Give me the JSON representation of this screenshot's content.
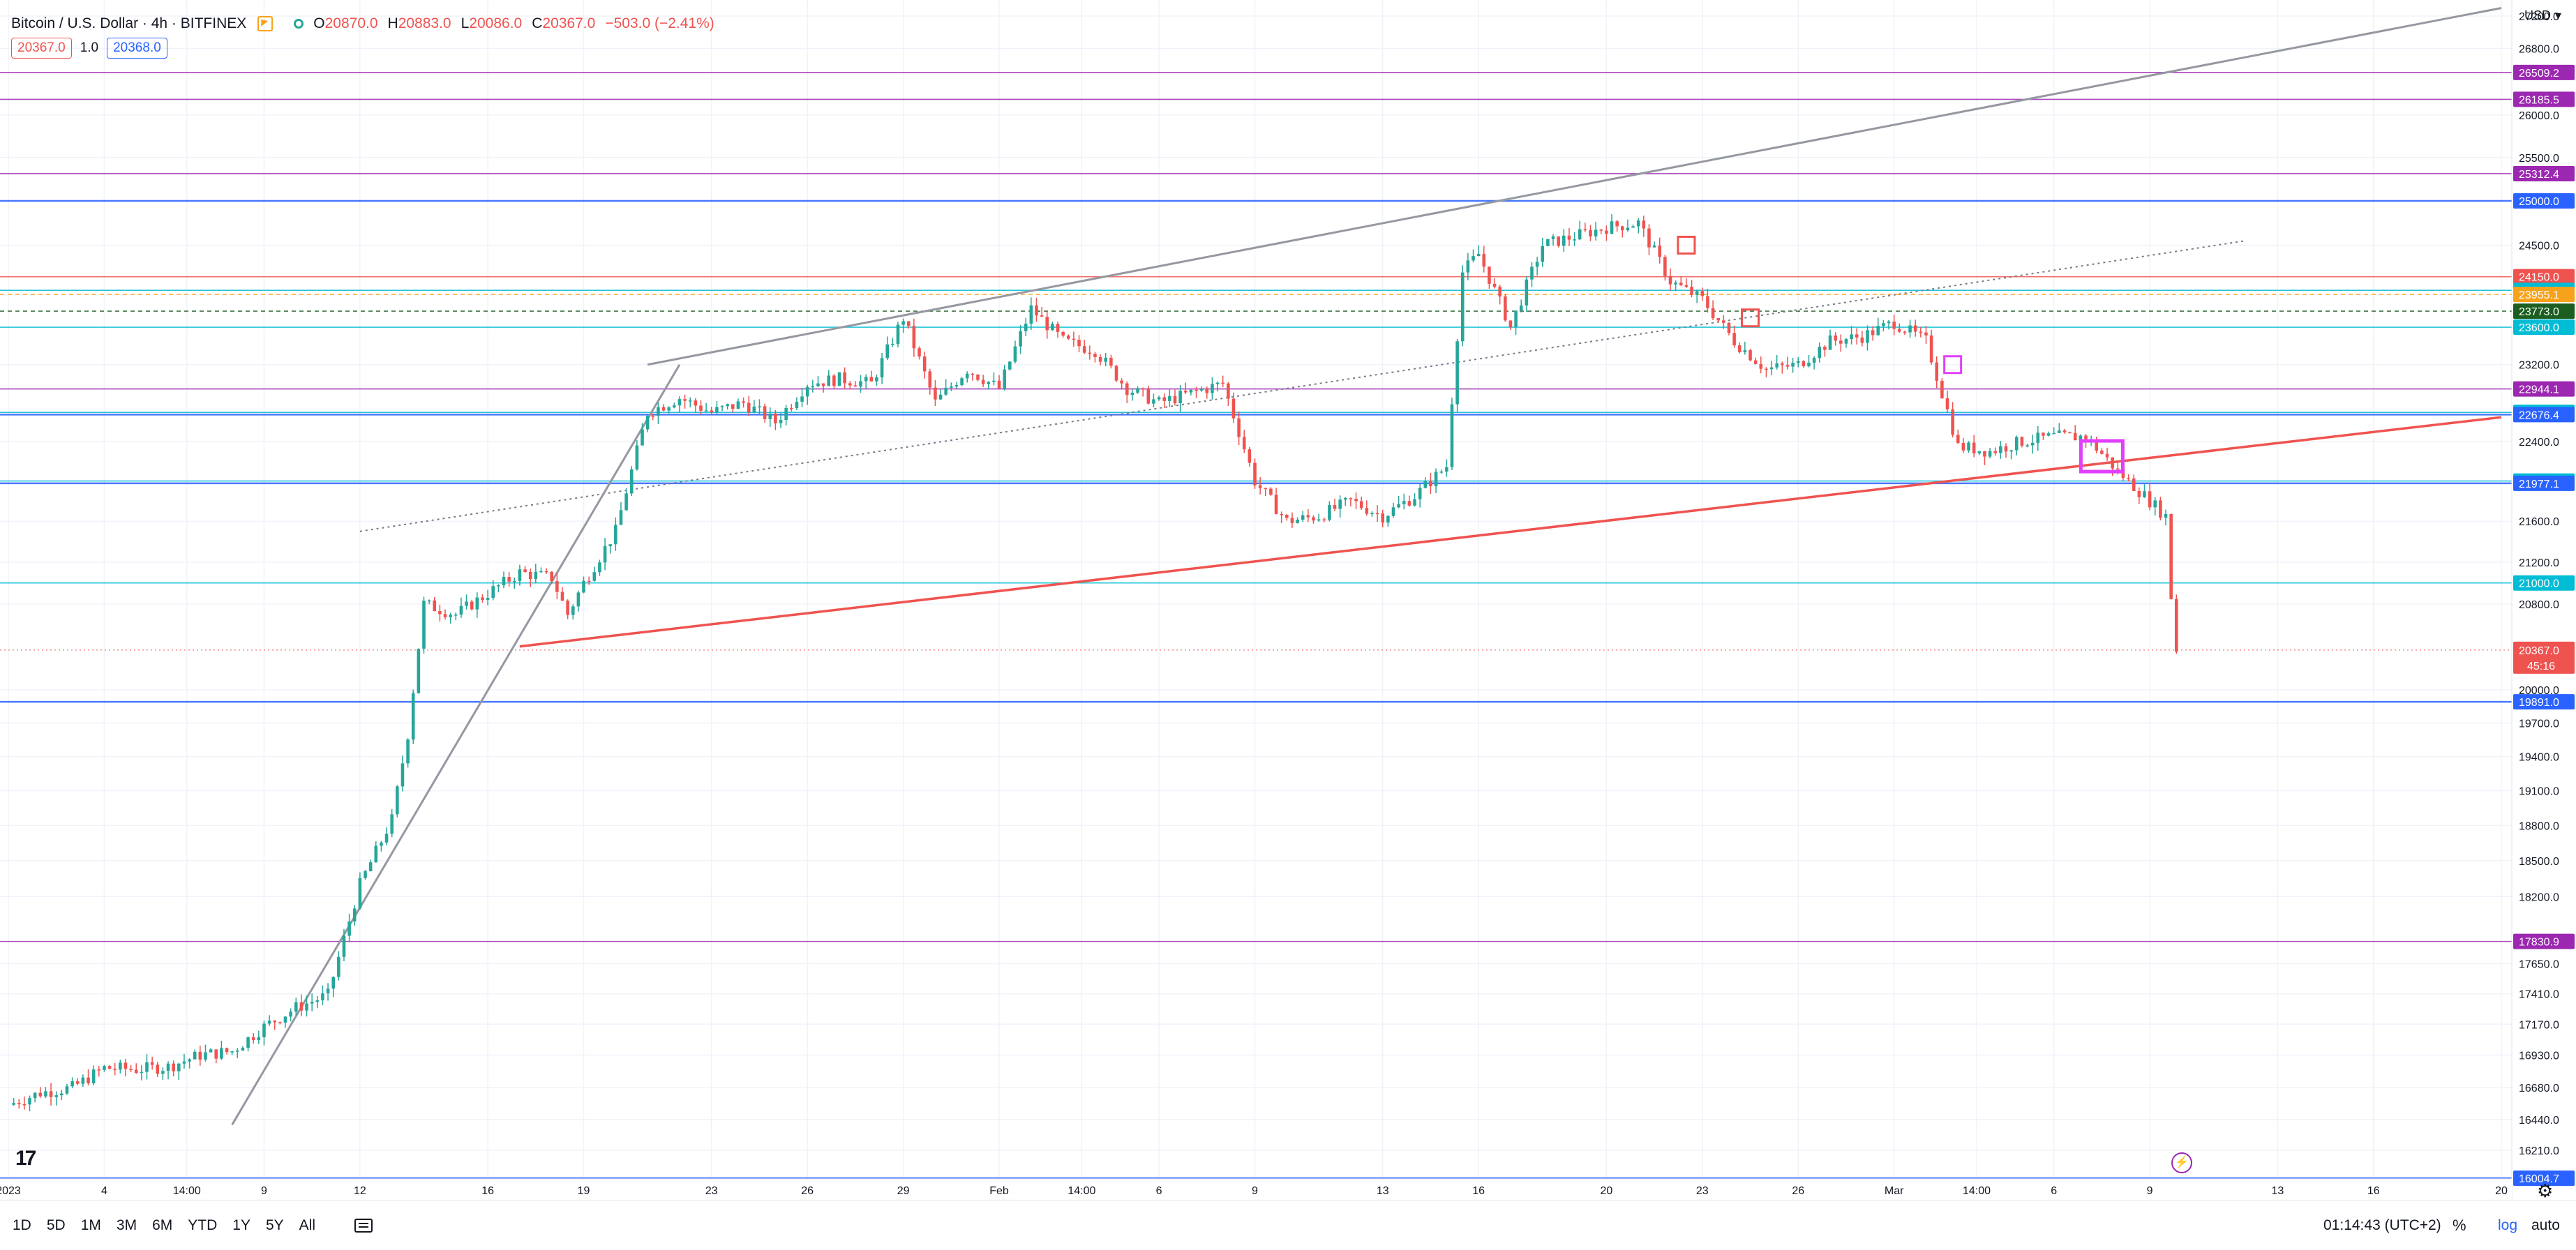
{
  "header": {
    "symbol": "Bitcoin / U.S. Dollar · 4h · BITFINEX",
    "open_label": "O",
    "open": "20870.0",
    "high_label": "H",
    "high": "20883.0",
    "low_label": "L",
    "low": "20086.0",
    "close_label": "C",
    "close": "20367.0",
    "change": "−503.0 (−2.41%)",
    "sell_price": "20367.0",
    "quantity": "1.0",
    "buy_price": "20368.0",
    "currency": "USD"
  },
  "colors": {
    "up": "#26a69a",
    "down": "#ef5350",
    "grid": "#f0f3fa",
    "purple": "#9c27b0",
    "cyan": "#00bcd4",
    "blue": "#2962ff",
    "grey": "#9598a1"
  },
  "chart_data": {
    "type": "candlestick",
    "title": "Bitcoin / U.S. Dollar · 4h · BITFINEX",
    "ylim": [
      16000,
      27400
    ],
    "y_scale": "log",
    "grid": true,
    "y_ticks": [
      "27200.0",
      "26800.0",
      "26000.0",
      "25500.0",
      "24500.0",
      "23200.0",
      "22400.0",
      "21600.0",
      "21200.0",
      "20800.0",
      "20000.0",
      "19700.0",
      "19400.0",
      "19100.0",
      "18800.0",
      "18500.0",
      "18200.0",
      "17650.0",
      "17410.0",
      "17170.0",
      "16930.0",
      "16680.0",
      "16440.0",
      "16210.0"
    ],
    "x_ticks": [
      {
        "label": "2023",
        "date": "2023-01-01"
      },
      {
        "label": "4",
        "date": "2023-01-04"
      },
      {
        "label": "14:00",
        "date": "2023-01-06 14:00"
      },
      {
        "label": "9",
        "date": "2023-01-09"
      },
      {
        "label": "12",
        "date": "2023-01-12"
      },
      {
        "label": "16",
        "date": "2023-01-16"
      },
      {
        "label": "19",
        "date": "2023-01-19"
      },
      {
        "label": "23",
        "date": "2023-01-23"
      },
      {
        "label": "26",
        "date": "2023-01-26"
      },
      {
        "label": "29",
        "date": "2023-01-29"
      },
      {
        "label": "Feb",
        "date": "2023-02-01"
      },
      {
        "label": "14:00",
        "date": "2023-02-03 14:00"
      },
      {
        "label": "6",
        "date": "2023-02-06"
      },
      {
        "label": "9",
        "date": "2023-02-09"
      },
      {
        "label": "13",
        "date": "2023-02-13"
      },
      {
        "label": "16",
        "date": "2023-02-16"
      },
      {
        "label": "20",
        "date": "2023-02-20"
      },
      {
        "label": "23",
        "date": "2023-02-23"
      },
      {
        "label": "26",
        "date": "2023-02-26"
      },
      {
        "label": "Mar",
        "date": "2023-03-01"
      },
      {
        "label": "14:00",
        "date": "2023-03-03 14:00"
      },
      {
        "label": "6",
        "date": "2023-03-06"
      },
      {
        "label": "9",
        "date": "2023-03-09"
      },
      {
        "label": "13",
        "date": "2023-03-13"
      },
      {
        "label": "16",
        "date": "2023-03-16"
      },
      {
        "label": "20",
        "date": "2023-03-20"
      }
    ],
    "price_series": [
      [
        "2023-01-01",
        16550
      ],
      [
        "2023-01-02",
        16640
      ],
      [
        "2023-01-03",
        16680
      ],
      [
        "2023-01-04",
        16830
      ],
      [
        "2023-01-05",
        16820
      ],
      [
        "2023-01-06",
        16840
      ],
      [
        "2023-01-07",
        16930
      ],
      [
        "2023-01-08",
        16960
      ],
      [
        "2023-01-09",
        17150
      ],
      [
        "2023-01-10",
        17300
      ],
      [
        "2023-01-11",
        17400
      ],
      [
        "2023-01-12",
        18300
      ],
      [
        "2023-01-13",
        18850
      ],
      [
        "2023-01-13 12:00",
        19600
      ],
      [
        "2023-01-14",
        20800
      ],
      [
        "2023-01-15",
        20700
      ],
      [
        "2023-01-16",
        20900
      ],
      [
        "2023-01-17",
        21100
      ],
      [
        "2023-01-18",
        21050
      ],
      [
        "2023-01-18 12:00",
        20700
      ],
      [
        "2023-01-19",
        21000
      ],
      [
        "2023-01-20",
        21500
      ],
      [
        "2023-01-21",
        22700
      ],
      [
        "2023-01-22",
        22850
      ],
      [
        "2023-01-23",
        22700
      ],
      [
        "2023-01-24",
        22800
      ],
      [
        "2023-01-25",
        22600
      ],
      [
        "2023-01-26",
        23000
      ],
      [
        "2023-01-27",
        23050
      ],
      [
        "2023-01-28",
        23000
      ],
      [
        "2023-01-29",
        23700
      ],
      [
        "2023-01-30",
        22800
      ],
      [
        "2023-01-31",
        23150
      ],
      [
        "2023-02-01",
        22950
      ],
      [
        "2023-02-02",
        23800
      ],
      [
        "2023-02-03",
        23450
      ],
      [
        "2023-02-04",
        23350
      ],
      [
        "2023-02-05",
        22950
      ],
      [
        "2023-02-06",
        22800
      ],
      [
        "2023-02-07",
        22900
      ],
      [
        "2023-02-08",
        23000
      ],
      [
        "2023-02-09",
        22000
      ],
      [
        "2023-02-10",
        21600
      ],
      [
        "2023-02-11",
        21650
      ],
      [
        "2023-02-12",
        21800
      ],
      [
        "2023-02-13",
        21650
      ],
      [
        "2023-02-14",
        21850
      ],
      [
        "2023-02-15",
        22150
      ],
      [
        "2023-02-15 12:00",
        24200
      ],
      [
        "2023-02-16",
        24400
      ],
      [
        "2023-02-17",
        23600
      ],
      [
        "2023-02-18",
        24500
      ],
      [
        "2023-02-19",
        24600
      ],
      [
        "2023-02-20",
        24700
      ],
      [
        "2023-02-21",
        24750
      ],
      [
        "2023-02-22",
        24100
      ],
      [
        "2023-02-23",
        23900
      ],
      [
        "2023-02-24",
        23450
      ],
      [
        "2023-02-25",
        23150
      ],
      [
        "2023-02-26",
        23200
      ],
      [
        "2023-02-27",
        23450
      ],
      [
        "2023-02-28",
        23500
      ],
      [
        "2023-03-01",
        23650
      ],
      [
        "2023-03-02",
        23450
      ],
      [
        "2023-03-03",
        22350
      ],
      [
        "2023-03-04",
        22300
      ],
      [
        "2023-03-05",
        22400
      ],
      [
        "2023-03-06",
        22450
      ],
      [
        "2023-03-07",
        22450
      ],
      [
        "2023-03-08",
        22100
      ],
      [
        "2023-03-09",
        21800
      ],
      [
        "2023-03-09 12:00",
        21650
      ],
      [
        "2023-03-09 16:00",
        20870
      ],
      [
        "2023-03-09 20:00",
        20367
      ]
    ],
    "levels": [
      {
        "label": "26509.2",
        "value": 26509.2,
        "color": "#9c27b0",
        "style": "solid"
      },
      {
        "label": "26185.5",
        "value": 26185.5,
        "color": "#9c27b0",
        "style": "solid"
      },
      {
        "label": "25312.4",
        "value": 25312.4,
        "color": "#9c27b0",
        "style": "solid"
      },
      {
        "label": "25000.0",
        "value": 25000.0,
        "color": "#2962ff",
        "style": "solid"
      },
      {
        "label": "24150.0",
        "value": 24150.0,
        "color": "#ef5350",
        "style": "solid"
      },
      {
        "label": "24000.0",
        "value": 24000.0,
        "color": "#00bcd4",
        "style": "solid"
      },
      {
        "label": "23955.1",
        "value": 23955.1,
        "color": "#f7a21b",
        "style": "dashed"
      },
      {
        "label": "23773.0",
        "value": 23773.0,
        "color": "#1b5e20",
        "style": "dashed"
      },
      {
        "label": "23600.0",
        "value": 23600.0,
        "color": "#00bcd4",
        "style": "solid"
      },
      {
        "label": "22944.1",
        "value": 22944.1,
        "color": "#9c27b0",
        "style": "solid"
      },
      {
        "label": "22700.0",
        "value": 22700.0,
        "color": "#00bcd4",
        "style": "solid"
      },
      {
        "label": "22676.4",
        "value": 22676.4,
        "color": "#2962ff",
        "style": "solid"
      },
      {
        "label": "22000.0",
        "value": 22000.0,
        "color": "#00bcd4",
        "style": "solid"
      },
      {
        "label": "21977.1",
        "value": 21977.1,
        "color": "#2962ff",
        "style": "solid"
      },
      {
        "label": "21000.0",
        "value": 21000.0,
        "color": "#00bcd4",
        "style": "solid"
      },
      {
        "label": "19891.0",
        "value": 19891.0,
        "color": "#2962ff",
        "style": "solid"
      },
      {
        "label": "17830.9",
        "value": 17830.9,
        "color": "#9c27b0",
        "style": "solid"
      },
      {
        "label": "16004.7",
        "value": 16004.7,
        "color": "#2962ff",
        "style": "solid"
      }
    ],
    "current_price_label": "20367.0",
    "current_price": 20367.0,
    "countdown": "45:16",
    "trendlines": [
      {
        "name": "upper-channel-grey",
        "from": [
          "2023-01-21",
          23200
        ],
        "to": [
          "2023-03-20",
          27300
        ],
        "color": "#9598a1"
      },
      {
        "name": "support-red",
        "from": [
          "2023-01-17",
          20400
        ],
        "to": [
          "2023-03-20",
          22650
        ],
        "color": "#ef5350"
      },
      {
        "name": "dotted-midline",
        "from": [
          "2023-01-12",
          21500
        ],
        "to": [
          "2023-03-12",
          24550
        ],
        "color": "#787b86"
      },
      {
        "name": "january-ramp-grey",
        "from": [
          "2023-01-08",
          16400
        ],
        "to": [
          "2023-01-22",
          23200
        ],
        "color": "#9598a1"
      }
    ]
  },
  "bottombar": {
    "timeframes": [
      "1D",
      "5D",
      "1M",
      "3M",
      "6M",
      "YTD",
      "1Y",
      "5Y",
      "All"
    ],
    "clock": "01:14:43 (UTC+2)",
    "percent": "%",
    "log": "log",
    "auto": "auto"
  }
}
